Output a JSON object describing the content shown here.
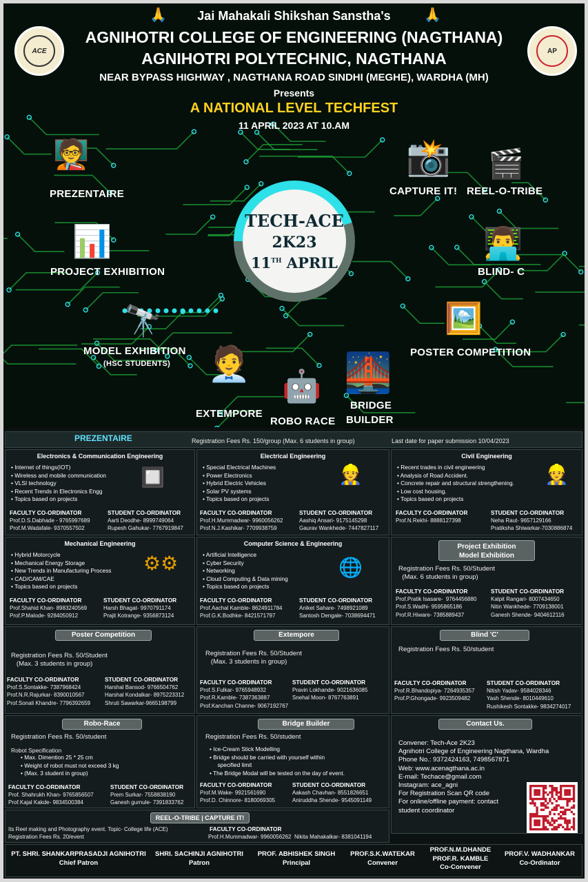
{
  "header": {
    "sanstha": "Jai Mahakali Shikshan Sanstha's",
    "college": "AGNIHOTRI COLLEGE OF ENGINEERING (NAGTHANA)",
    "polytechnic": "AGNIHOTRI POLYTECHNIC, NAGTHANA",
    "address": "NEAR BYPASS HIGHWAY , NAGTHANA ROAD SINDHI (MEGHE), WARDHA (MH)",
    "presents": "Presents",
    "event": "A NATIONAL LEVEL TECHFEST",
    "datetime": "11 APRIL 2023 AT 10.AM",
    "logo_left": "ACE",
    "logo_right": "AP"
  },
  "center": {
    "name": "TECH-ACE",
    "year": "2K23",
    "day": "11",
    "sup": "TH",
    "month": "APRIL"
  },
  "events": {
    "prezentaire": "PREZENTAIRE",
    "project": "PROJECT EXHIBITION",
    "model": "MODEL EXHIBITION",
    "model_sub": "(HSC STUDENTS)",
    "extempore": "EXTEMPORE",
    "robo": "ROBO RACE",
    "bridge1": "BRIDGE",
    "bridge2": "BUILDER",
    "poster": "POSTER COMPETITION",
    "blind": "BLIND- C",
    "capture": "CAPTURE IT!",
    "reel": "REEL-O-TRIBE"
  },
  "prez_bar": {
    "title": "PREZENTAIRE",
    "fees": "Registration Fees Rs. 150/group (Max. 6 students in group)",
    "last": "Last date for paper submission 10/04/2023"
  },
  "labels": {
    "faculty": "FACULTY CO-ORDINATOR",
    "student": "STUDENT CO-ORDINATOR"
  },
  "entc": {
    "title": "Electronics & Communication  Engineering",
    "topics": [
      "Internet of things(IOT)",
      "Wireless and mobile communication",
      "VLSI technology",
      "Recent Trends in Electronics Engg",
      "Topics based on projects"
    ],
    "faculty": "Prof.D.S.Dabhade - 9765997689\nProf.M.Wadafale- 9370557502",
    "student": "Aarti Deodhe- 8999749064\nRupesh Gahukar- 7767919847"
  },
  "elec": {
    "title": "Electrical Engineering",
    "topics": [
      "Special Electrical Machines",
      "Power Electronics",
      "Hybrid Electric Vehicles",
      "Solar PV systems",
      "Topics based on projects"
    ],
    "faculty": "Prof.H.Mummadwar- 9960056262\nProf.N.J.Kashikar- 7709938759",
    "student": "Aashiq Ansari- 9175145298\nGaurav Wankhede- 7447827117"
  },
  "civil": {
    "title": "Civil Engineering",
    "topics": [
      "Recent trades in civil engineering",
      "Analysis of Road Accident.",
      "Concrete repair and structural strengthening.",
      "Low cost housing.",
      "Topics based on projects"
    ],
    "faculty": "Prof.N.Rekhi- 8888127398",
    "student": "Neha Raut- 9657129166\nPratiksha Shiwarkar-7030886874"
  },
  "mech": {
    "title": "Mechanical Engineering",
    "topics": [
      "Hybrid Motorcycle",
      "Mechanical Energy Storage",
      "New Trends in Manufacturing Process",
      "CAD/CAM/CAE",
      "Topics based on projects"
    ],
    "faculty": "Prof.Shahid Khan- 8983240569\nProf.P.Malode- 9284050912",
    "student": "Harsh Bhagat- 9970791174\nPrajit Kotrange- 9356873124"
  },
  "cse": {
    "title": "Computer Science & Engineering",
    "topics": [
      "Artificial Intelligence",
      "Cyber Security",
      "Networking",
      "Cloud Computing & Data mining",
      "Topics based on projects"
    ],
    "faculty": "Prof.Aachal Kamble- 8624911784\nProf.G.K.Bodhke- 8421571797",
    "student": "Aniket Sahare- 7498921089\nSantosh Dengale- 7038694471"
  },
  "project": {
    "title1": "Project Exhibition",
    "title2": "Model Exhibition",
    "fees": "Registration Fees Rs. 50/Student\n  (Max. 6 students in group)",
    "faculty": "Prof.Pratik Isasare-  9764456880\nProf.S.Wadhi- 9595865186\nProf.R.Hiware- 7385889437",
    "student": "Kalpit Rangari- 8007434650\nNitin Wankhede- 7709138001\nGanesh Shende- 9404612116"
  },
  "poster": {
    "title": "Poster Competition",
    "fees": "Registration Fees Rs. 50/Student\n   (Max. 3 students in group)",
    "faculty": "Prof.S.Sontakke- 7387968424\nProf.N.R.Rajurkar- 8390010567\nProf.Sonali Khandre- 7796392659",
    "student": "Harshal Bansod- 9766504762\nHarshal Kondalkar- 8975223312\nShruti Sawarkar-9665198799"
  },
  "extempore": {
    "title": "Extempore",
    "fees": "Registration Fees Rs. 50/Student\n   (Max. 3 students in group)",
    "faculty": "Prof.S.Fulkar- 9765948932\nProf.R.Kamble- 7387363887\nProf.Kanchan Channe- 9067192767",
    "student": "Pravin Lokhande- 9021636085\nSnehal Moon- 8767763891"
  },
  "blind": {
    "title": "Blind 'C'",
    "fees": "Registration Fees Rs. 50/student",
    "faculty": "Prof.R.Bhandopiya- 7264935357\nProf.P.Ghongade- 9923509482",
    "student": "Nitish Yadav- 9584028346\nYash Shende- 8010449610\nRushikesh Sontakke- 9834274017"
  },
  "robo": {
    "title": "Robo-Race",
    "fees": "Registration Fees Rs. 50/student",
    "spec_title": "Robot Specification",
    "spec": [
      "Max. Dimention 25 * 25 cm",
      "Weight of robot must not exceed 3 kg",
      "(Max. 3 student in group)"
    ],
    "faculty": "Prof. Shahrukh Khan- 9765856507\nProf.Kajal Kakde- 9834500384",
    "student": "Prem Surkar- 7558838190\nGanesh gurnule- 7391833762"
  },
  "bridge": {
    "title": "Bridge Builder",
    "fees": "Registration Fees Rs. 50/student",
    "rules": [
      "Ice-Cream Stick Modelling",
      "Bridge should be carried with yourself within\n     specified limit",
      "The Bridge Modal will be tested on the day of event."
    ],
    "faculty": "Prof.M.Wake- 9921561690\nProf.D. Chinnore- 8180069305",
    "student": "Aakash Chavhan- 8551826651\nAniruddha Shende- 9545091149"
  },
  "contact": {
    "title": "Contact Us.",
    "lines": [
      "Convener: Tech-Ace 2K23",
      "Agnihotri College of Engineering Nagthana, Wardha",
      "Phone No.: 9372424163, 7498567871",
      "Web: www.acenagthana.ac.in",
      "E-mail: Techace@gmail.com",
      "Instagram: ace_agni",
      "For Registration Scan QR code",
      "For online/offline payment: contact",
      "student coordinator"
    ]
  },
  "reel": {
    "title": "REEL-O-TRIBE | CAPTURE IT!",
    "desc": "Its Reel making and Photography event. Topic- College life (ACE)\nRegistration Fees Rs. 20/event",
    "faculty": "Prof.H.Mummadwar- 9960056262  Nikita Mahakalkar- 8381041194"
  },
  "footer": [
    {
      "name": "PT. SHRI. SHANKARPRASADJI AGNIHOTRI",
      "role": "Chief Patron"
    },
    {
      "name": "SHRI. SACHINJI AGNIHOTRI",
      "role": "Patron"
    },
    {
      "name": "PROF. ABHISHEK SINGH",
      "role": "Principal"
    },
    {
      "name": "PROF.S.K.WATEKAR",
      "role": "Convener"
    },
    {
      "name": "PROF.N.M.DHANDE",
      "name2": "PROF.R. KAMBLE",
      "role": "Co-Convener"
    },
    {
      "name": "PROF.V. WADHANKAR",
      "role": "Co-Ordinator"
    }
  ],
  "colors": {
    "circuit": "#1fae3a",
    "ring": "#2ee0e8",
    "bg": "#05100b"
  }
}
